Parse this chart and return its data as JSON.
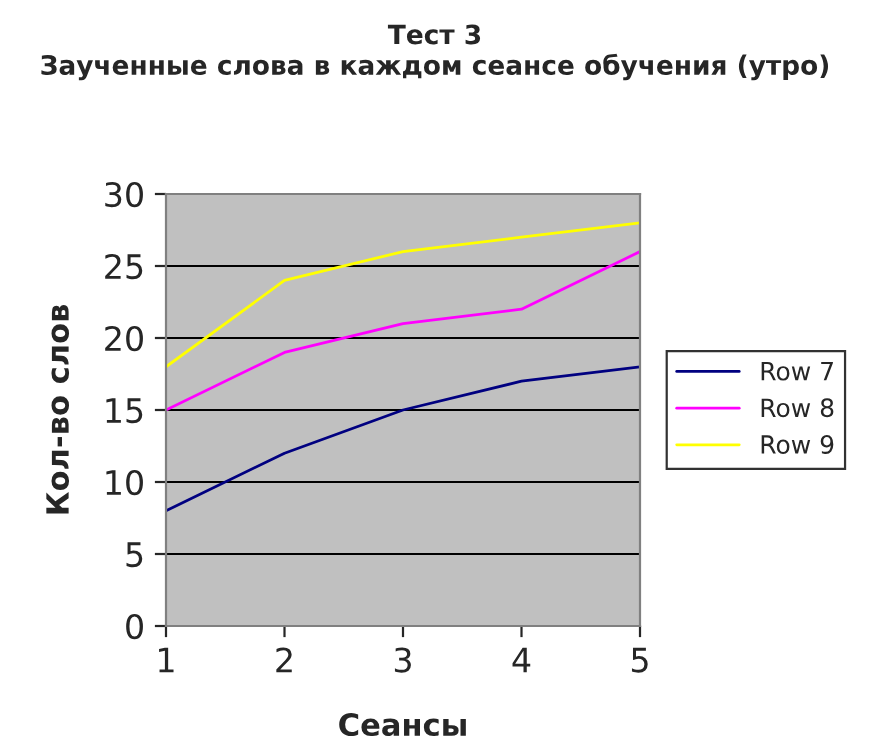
{
  "chart_data": {
    "type": "line",
    "title": "Тест 3\nЗаученные слова в каждом сеансе обучения (утро)",
    "xlabel": "Сеансы",
    "ylabel": "Кол-во слов",
    "x": [
      1,
      2,
      3,
      4,
      5
    ],
    "series": [
      {
        "name": "Row 7",
        "color": "#000080",
        "values": [
          8,
          12,
          15,
          17,
          18
        ]
      },
      {
        "name": "Row 8",
        "color": "#ff00ff",
        "values": [
          15,
          19,
          21,
          22,
          26
        ]
      },
      {
        "name": "Row 9",
        "color": "#ffff00",
        "values": [
          18,
          24,
          26,
          27,
          28
        ]
      }
    ],
    "xlim": [
      1,
      5
    ],
    "xticks": [
      1,
      2,
      3,
      4,
      5
    ],
    "ylim": [
      0,
      30
    ],
    "yticks": [
      0,
      5,
      10,
      15,
      20,
      25,
      30
    ],
    "grid": "y",
    "legend": "right",
    "marker": "none",
    "line_style": "solid"
  }
}
